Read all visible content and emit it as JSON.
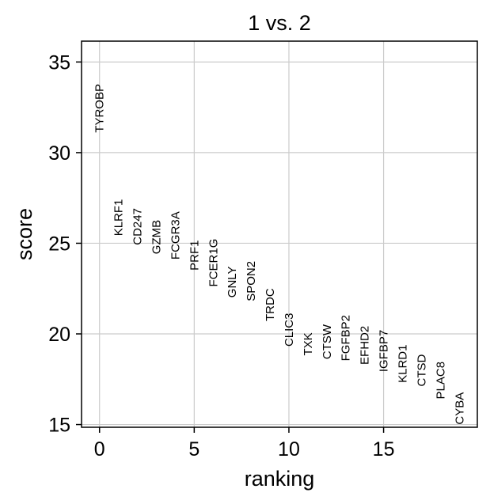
{
  "chart_data": {
    "type": "scatter",
    "title": "1 vs. 2",
    "xlabel": "ranking",
    "ylabel": "score",
    "xlim": [
      -0.95,
      19.95
    ],
    "ylim": [
      14.85,
      36.15
    ],
    "x_ticks": [
      0,
      5,
      10,
      15
    ],
    "y_ticks": [
      15,
      20,
      25,
      30,
      35
    ],
    "grid": true,
    "points": [
      {
        "x": 0,
        "y": 31.1,
        "label": "TYROBP"
      },
      {
        "x": 1,
        "y": 25.4,
        "label": "KLRF1"
      },
      {
        "x": 2,
        "y": 24.9,
        "label": "CD247"
      },
      {
        "x": 3,
        "y": 24.4,
        "label": "GZMB"
      },
      {
        "x": 4,
        "y": 24.1,
        "label": "FCGR3A"
      },
      {
        "x": 5,
        "y": 23.5,
        "label": "PRF1"
      },
      {
        "x": 6,
        "y": 22.6,
        "label": "FCER1G"
      },
      {
        "x": 7,
        "y": 22.0,
        "label": "GNLY"
      },
      {
        "x": 8,
        "y": 21.8,
        "label": "SPON2"
      },
      {
        "x": 9,
        "y": 20.7,
        "label": "TRDC"
      },
      {
        "x": 10,
        "y": 19.3,
        "label": "CLIC3"
      },
      {
        "x": 11,
        "y": 18.8,
        "label": "TXK"
      },
      {
        "x": 12,
        "y": 18.6,
        "label": "CTSW"
      },
      {
        "x": 13,
        "y": 18.5,
        "label": "FGFBP2"
      },
      {
        "x": 14,
        "y": 18.3,
        "label": "EFHD2"
      },
      {
        "x": 15,
        "y": 17.9,
        "label": "IGFBP7"
      },
      {
        "x": 16,
        "y": 17.3,
        "label": "KLRD1"
      },
      {
        "x": 17,
        "y": 17.1,
        "label": "CTSD"
      },
      {
        "x": 18,
        "y": 16.4,
        "label": "PLAC8"
      },
      {
        "x": 19,
        "y": 15.0,
        "label": "CYBA"
      }
    ]
  }
}
